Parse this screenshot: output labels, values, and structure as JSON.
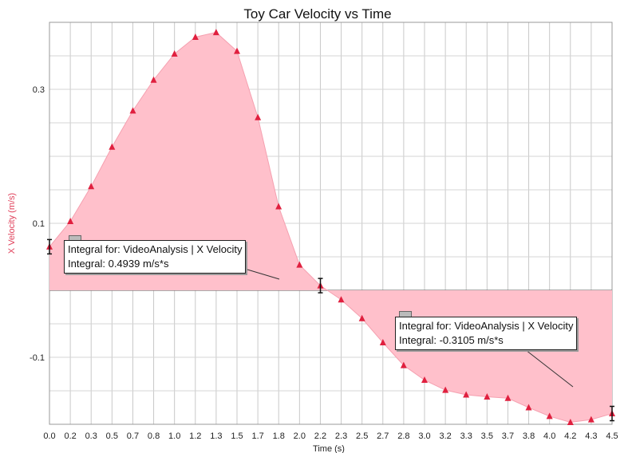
{
  "chart_data": {
    "type": "line",
    "title": "Toy Car Velocity vs Time",
    "xlabel": "Time (s)",
    "ylabel": "X Velocity (m/s)",
    "xlim": [
      0,
      4.5
    ],
    "ylim": [
      -0.2,
      0.4
    ],
    "x_tick_labels": [
      "0.0",
      "0.2",
      "0.3",
      "0.5",
      "0.7",
      "0.8",
      "1.0",
      "1.2",
      "1.3",
      "1.5",
      "1.7",
      "1.8",
      "2.0",
      "2.2",
      "2.3",
      "2.5",
      "2.7",
      "2.8",
      "3.0",
      "3.2",
      "3.3",
      "3.5",
      "3.7",
      "3.8",
      "4.0",
      "4.2",
      "4.3",
      "4.5"
    ],
    "y_ticks": [
      -0.1,
      0.1,
      0.3
    ],
    "y_tick_labels": [
      "-0.1",
      "0.1",
      "0.3"
    ],
    "grid": true,
    "series": [
      {
        "color": "#e0203f",
        "fill_color": "#ffc0cb",
        "marker": "triangle",
        "x": [
          0.0,
          0.167,
          0.333,
          0.5,
          0.667,
          0.833,
          1.0,
          1.167,
          1.333,
          1.5,
          1.667,
          1.833,
          2.0,
          2.167,
          2.333,
          2.5,
          2.667,
          2.833,
          3.0,
          3.167,
          3.333,
          3.5,
          3.667,
          3.833,
          4.0,
          4.167,
          4.333,
          4.5
        ],
        "y": [
          0.065,
          0.103,
          0.155,
          0.214,
          0.268,
          0.314,
          0.353,
          0.378,
          0.385,
          0.357,
          0.258,
          0.125,
          0.038,
          0.007,
          -0.014,
          -0.042,
          -0.078,
          -0.112,
          -0.134,
          -0.149,
          -0.156,
          -0.159,
          -0.161,
          -0.175,
          -0.188,
          -0.197,
          -0.193,
          -0.184
        ]
      }
    ],
    "annotations": [
      {
        "line1": "Integral for: VideoAnalysis | X Velocity",
        "line2": "Integral: 0.4939 m/s*s",
        "x_range": [
          0.0,
          2.167
        ]
      },
      {
        "line1": "Integral for: VideoAnalysis | X Velocity",
        "line2": "Integral: -0.3105 m/s*s",
        "x_range": [
          2.167,
          4.5
        ]
      }
    ]
  }
}
